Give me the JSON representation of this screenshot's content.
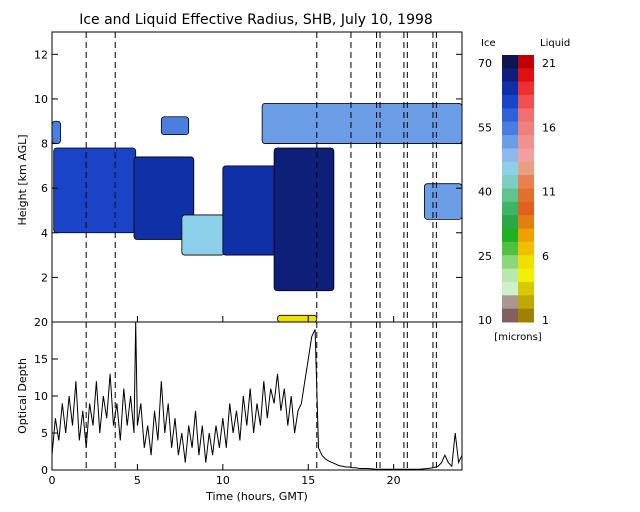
{
  "title": "Ice and Liquid Effective Radius, SHB, July 10, 1998",
  "colorbar": {
    "ice_label": "Ice",
    "liquid_label": "Liquid",
    "units_label": "[microns]",
    "ice_ticks": [
      "70",
      "55",
      "40",
      "25",
      "10"
    ],
    "liquid_ticks": [
      "21",
      "16",
      "11",
      "6",
      "1"
    ],
    "ice_colors": [
      "#0a1650",
      "#0d1f78",
      "#1030a8",
      "#1a44c8",
      "#2f62d8",
      "#4a7fe0",
      "#6a9de6",
      "#8cb8ec",
      "#8ccfe8",
      "#7ccfc0",
      "#5cc48c",
      "#3db564",
      "#2aa844",
      "#20b020",
      "#50c040",
      "#8ad87a",
      "#b8e8b0",
      "#d0f0c8",
      "#a89890",
      "#806060"
    ],
    "liquid_colors": [
      "#c00000",
      "#e01010",
      "#f03030",
      "#f05050",
      "#f07070",
      "#f08080",
      "#f09090",
      "#f0a0a0",
      "#e8a080",
      "#e88050",
      "#e07030",
      "#e06020",
      "#e08010",
      "#f0a000",
      "#f0c000",
      "#f0e000",
      "#f0f000",
      "#d8c800",
      "#c0a800",
      "#a08000"
    ]
  },
  "chart_data": [
    {
      "type": "heatmap",
      "title": "Ice and Liquid Effective Radius, SHB, July 10, 1998",
      "ylabel": "Height [km AGL]",
      "xlim": [
        0,
        24
      ],
      "ylim": [
        0,
        13
      ],
      "yticks": [
        2,
        4,
        6,
        8,
        10,
        12
      ],
      "xticks_minor": [
        0,
        5,
        10,
        15,
        20
      ],
      "dashed_lines_x": [
        2.0,
        3.7,
        15.5,
        17.5,
        19.0,
        19.2,
        20.6,
        20.8,
        22.3,
        22.5
      ],
      "grid": false,
      "layers": [
        {
          "phase": "ice",
          "x_start": 0.1,
          "x_end": 4.9,
          "base_km": 4.0,
          "top_km": 7.8,
          "radius_microns": 60
        },
        {
          "phase": "ice",
          "x_start": 0.0,
          "x_end": 0.5,
          "base_km": 8.0,
          "top_km": 9.0,
          "radius_microns": 55
        },
        {
          "phase": "ice",
          "x_start": 4.8,
          "x_end": 8.3,
          "base_km": 3.7,
          "top_km": 7.4,
          "radius_microns": 62
        },
        {
          "phase": "ice",
          "x_start": 6.4,
          "x_end": 8.0,
          "base_km": 8.4,
          "top_km": 9.2,
          "radius_microns": 55
        },
        {
          "phase": "ice",
          "x_start": 7.6,
          "x_end": 10.1,
          "base_km": 3.0,
          "top_km": 4.8,
          "radius_microns": 45
        },
        {
          "phase": "ice",
          "x_start": 10.0,
          "x_end": 15.0,
          "base_km": 3.0,
          "top_km": 7.0,
          "radius_microns": 63
        },
        {
          "phase": "ice",
          "x_start": 13.0,
          "x_end": 16.5,
          "base_km": 1.4,
          "top_km": 7.8,
          "radius_microns": 65
        },
        {
          "phase": "ice",
          "x_start": 12.3,
          "x_end": 24.0,
          "base_km": 8.0,
          "top_km": 9.8,
          "radius_microns": 50
        },
        {
          "phase": "ice",
          "x_start": 21.8,
          "x_end": 24.0,
          "base_km": 4.6,
          "top_km": 6.2,
          "radius_microns": 50
        },
        {
          "phase": "liquid",
          "x_start": 13.2,
          "x_end": 15.5,
          "base_km": 0.0,
          "top_km": 0.3,
          "radius_microns": 6
        }
      ]
    },
    {
      "type": "line",
      "ylabel": "Optical Depth",
      "xlabel": "Time (hours, GMT)",
      "xlim": [
        0,
        24
      ],
      "ylim": [
        0,
        20
      ],
      "xticks": [
        0,
        5,
        10,
        15,
        20
      ],
      "yticks": [
        0,
        5,
        10,
        15,
        20
      ],
      "dashed_lines_x": [
        2.0,
        3.7,
        15.5,
        17.5,
        19.0,
        19.2,
        20.6,
        20.8,
        22.3,
        22.5
      ],
      "series": [
        {
          "x": [
            0.0,
            0.2,
            0.4,
            0.6,
            0.8,
            1.0,
            1.2,
            1.4,
            1.6,
            1.8,
            2.0,
            2.2,
            2.4,
            2.6,
            2.8,
            3.0,
            3.2,
            3.4,
            3.6,
            3.8,
            4.0,
            4.2,
            4.4,
            4.6,
            4.8,
            4.9,
            5.0,
            5.2,
            5.4,
            5.6,
            5.8,
            6.0,
            6.2,
            6.4,
            6.6,
            6.8,
            7.0,
            7.2,
            7.4,
            7.6,
            7.8,
            8.0,
            8.2,
            8.4,
            8.6,
            8.8,
            9.0,
            9.2,
            9.4,
            9.6,
            9.8,
            10.0,
            10.2,
            10.4,
            10.6,
            10.8,
            11.0,
            11.2,
            11.4,
            11.6,
            11.8,
            12.0,
            12.2,
            12.4,
            12.6,
            12.8,
            13.0,
            13.2,
            13.4,
            13.6,
            13.8,
            14.0,
            14.2,
            14.4,
            14.6,
            14.8,
            15.0,
            15.2,
            15.4,
            15.6,
            15.8,
            16.0,
            16.2,
            16.4,
            16.6,
            16.8,
            17.0,
            17.2,
            17.4,
            17.6,
            17.8,
            18.0,
            18.5,
            19.0,
            19.5,
            20.0,
            20.5,
            21.0,
            21.5,
            22.0,
            22.3,
            22.6,
            22.8,
            23.0,
            23.2,
            23.4,
            23.6,
            23.8,
            24.0
          ],
          "y": [
            2,
            7,
            4,
            9,
            5,
            10,
            6,
            12,
            4,
            8,
            3,
            9,
            6,
            12,
            5,
            10,
            7,
            13,
            6,
            9,
            4,
            11,
            6,
            10,
            5,
            20,
            6,
            9,
            3,
            6,
            2,
            8,
            4,
            12,
            5,
            9,
            3,
            7,
            2,
            5,
            1,
            6,
            3,
            8,
            2,
            6,
            1,
            5,
            2,
            6,
            3,
            7,
            3,
            9,
            5,
            8,
            4,
            10,
            6,
            11,
            5,
            9,
            6,
            12,
            7,
            11,
            9,
            13,
            8,
            11,
            6,
            10,
            5,
            8,
            9,
            12,
            15,
            18,
            19,
            3,
            2,
            1.5,
            1.2,
            1,
            0.8,
            0.6,
            0.5,
            0.4,
            0.4,
            0.3,
            0.3,
            0.2,
            0.2,
            0.1,
            0.1,
            0.1,
            0.1,
            0.1,
            0.1,
            0.2,
            0.3,
            0.5,
            1,
            2,
            1,
            0.5,
            5,
            1,
            2
          ]
        }
      ]
    }
  ]
}
